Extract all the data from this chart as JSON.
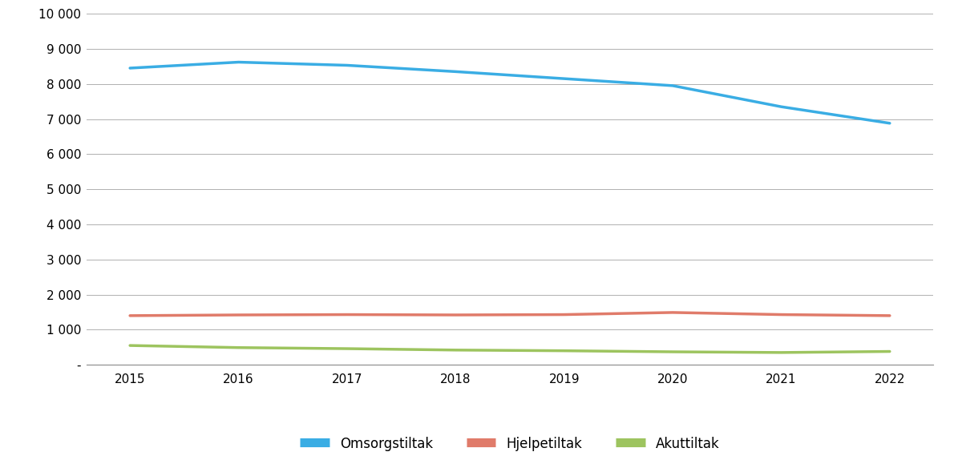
{
  "years": [
    2015,
    2016,
    2017,
    2018,
    2019,
    2020,
    2021,
    2022
  ],
  "omsorgstiltak": [
    8450,
    8620,
    8530,
    8350,
    8150,
    7950,
    7350,
    6880
  ],
  "hjelpetiltak": [
    1400,
    1420,
    1430,
    1420,
    1430,
    1490,
    1430,
    1400
  ],
  "akuttiltak": [
    550,
    490,
    460,
    420,
    400,
    370,
    350,
    380
  ],
  "colors": {
    "omsorgstiltak": "#3aade4",
    "hjelpetiltak": "#e07b6a",
    "akuttiltak": "#9dc45f"
  },
  "legend_labels": [
    "Omsorgstiltak",
    "Hjelpetiltak",
    "Akuttiltak"
  ],
  "ylim": [
    0,
    10000
  ],
  "yticks": [
    0,
    1000,
    2000,
    3000,
    4000,
    5000,
    6000,
    7000,
    8000,
    9000,
    10000
  ],
  "ytick_labels": [
    "-",
    "1 000",
    "2 000",
    "3 000",
    "4 000",
    "5 000",
    "6 000",
    "7 000",
    "8 000",
    "9 000",
    "10 000"
  ],
  "line_width": 2.5,
  "background_color": "#ffffff",
  "grid_color": "#b0b0b0",
  "tick_fontsize": 11,
  "legend_fontsize": 12
}
